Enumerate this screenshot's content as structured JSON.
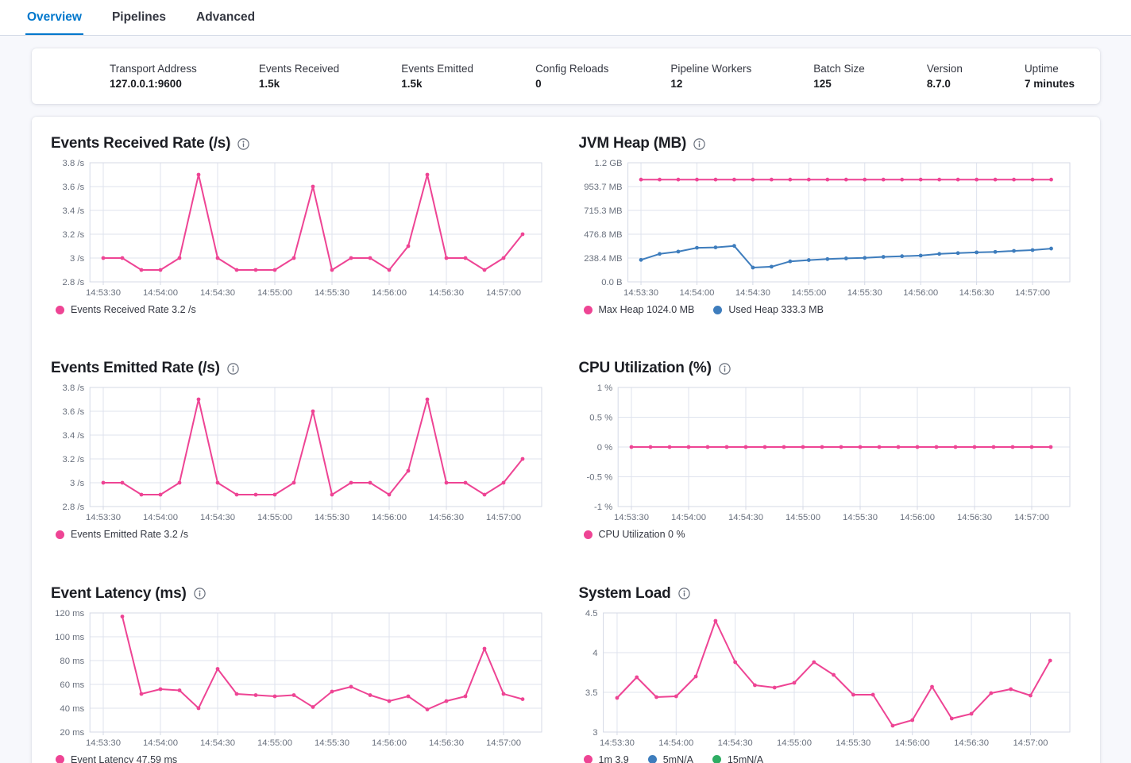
{
  "tabs": [
    {
      "label": "Overview",
      "active": true
    },
    {
      "label": "Pipelines",
      "active": false
    },
    {
      "label": "Advanced",
      "active": false
    }
  ],
  "colors": {
    "accent_blue": "#0077cc",
    "pink": "#ee4494",
    "blue": "#3e7dbd",
    "green": "#2ead63"
  },
  "stats": [
    {
      "label": "Transport Address",
      "value": "127.0.0.1:9600"
    },
    {
      "label": "Events Received",
      "value": "1.5k"
    },
    {
      "label": "Events Emitted",
      "value": "1.5k"
    },
    {
      "label": "Config Reloads",
      "value": "0"
    },
    {
      "label": "Pipeline Workers",
      "value": "12"
    },
    {
      "label": "Batch Size",
      "value": "125"
    },
    {
      "label": "Version",
      "value": "8.7.0"
    },
    {
      "label": "Uptime",
      "value": "7 minutes"
    }
  ],
  "charts": [
    {
      "id": "events-received-rate",
      "title": "Events Received Rate (/s)",
      "legend": [
        {
          "color": "#ee4494",
          "label": "Events Received Rate 3.2 /s"
        }
      ],
      "chart_data": {
        "type": "line",
        "x_start": "14:53:30",
        "x_interval_seconds": 10,
        "x_tick_labels": [
          "14:53:30",
          "14:54:00",
          "14:54:30",
          "14:55:00",
          "14:55:30",
          "14:56:00",
          "14:56:30",
          "14:57:00"
        ],
        "x_tick_units": [
          0,
          3,
          6,
          9,
          12,
          15,
          18,
          21
        ],
        "ylim": [
          2.8,
          3.8
        ],
        "y_ticks": [
          2.8,
          3,
          3.2,
          3.4,
          3.6,
          3.8
        ],
        "y_tick_labels": [
          "2.8 /s",
          "3 /s",
          "3.2 /s",
          "3.4 /s",
          "3.6 /s",
          "3.8 /s"
        ],
        "grid": true,
        "series": [
          {
            "name": "Events Received Rate",
            "color": "#ee4494",
            "x_offset": 0,
            "values": [
              3,
              3,
              2.9,
              2.9,
              3,
              3.7,
              3,
              2.9,
              2.9,
              2.9,
              3,
              3.6,
              2.9,
              3,
              3,
              2.9,
              3.1,
              3.7,
              3,
              3,
              2.9,
              3,
              3.2
            ]
          }
        ]
      }
    },
    {
      "id": "jvm-heap",
      "title": "JVM Heap (MB)",
      "legend": [
        {
          "color": "#ee4494",
          "label": "Max Heap 1024.0 MB"
        },
        {
          "color": "#3e7dbd",
          "label": "Used Heap 333.3 MB"
        }
      ],
      "chart_data": {
        "type": "line",
        "x_start": "14:53:30",
        "x_interval_seconds": 10,
        "x_tick_labels": [
          "14:53:30",
          "14:54:00",
          "14:54:30",
          "14:55:00",
          "14:55:30",
          "14:56:00",
          "14:56:30",
          "14:57:00"
        ],
        "x_tick_units": [
          0,
          3,
          6,
          9,
          12,
          15,
          18,
          21
        ],
        "ylim": [
          0,
          1192.1
        ],
        "y_ticks": [
          0,
          238.4,
          476.8,
          715.3,
          953.7,
          1192.1
        ],
        "y_tick_labels": [
          "0.0 B",
          "238.4 MB",
          "476.8 MB",
          "715.3 MB",
          "953.7 MB",
          "1.2 GB"
        ],
        "grid": true,
        "series": [
          {
            "name": "Max Heap",
            "color": "#ee4494",
            "x_offset": 0,
            "values": [
              1024,
              1024,
              1024,
              1024,
              1024,
              1024,
              1024,
              1024,
              1024,
              1024,
              1024,
              1024,
              1024,
              1024,
              1024,
              1024,
              1024,
              1024,
              1024,
              1024,
              1024,
              1024,
              1024
            ]
          },
          {
            "name": "Used Heap",
            "color": "#3e7dbd",
            "x_offset": 0,
            "values": [
              220,
              280,
              303,
              341,
              345,
              360,
              143,
              152,
              205,
              218,
              228,
              235,
              240,
              250,
              257,
              263,
              280,
              288,
              295,
              300,
              310,
              318,
              333.3
            ]
          }
        ]
      }
    },
    {
      "id": "events-emitted-rate",
      "title": "Events Emitted Rate (/s)",
      "legend": [
        {
          "color": "#ee4494",
          "label": "Events Emitted Rate 3.2 /s"
        }
      ],
      "chart_data": {
        "type": "line",
        "x_start": "14:53:30",
        "x_interval_seconds": 10,
        "x_tick_labels": [
          "14:53:30",
          "14:54:00",
          "14:54:30",
          "14:55:00",
          "14:55:30",
          "14:56:00",
          "14:56:30",
          "14:57:00"
        ],
        "x_tick_units": [
          0,
          3,
          6,
          9,
          12,
          15,
          18,
          21
        ],
        "ylim": [
          2.8,
          3.8
        ],
        "y_ticks": [
          2.8,
          3,
          3.2,
          3.4,
          3.6,
          3.8
        ],
        "y_tick_labels": [
          "2.8 /s",
          "3 /s",
          "3.2 /s",
          "3.4 /s",
          "3.6 /s",
          "3.8 /s"
        ],
        "grid": true,
        "series": [
          {
            "name": "Events Emitted Rate",
            "color": "#ee4494",
            "x_offset": 0,
            "values": [
              3,
              3,
              2.9,
              2.9,
              3,
              3.7,
              3,
              2.9,
              2.9,
              2.9,
              3,
              3.6,
              2.9,
              3,
              3,
              2.9,
              3.1,
              3.7,
              3,
              3,
              2.9,
              3,
              3.2
            ]
          }
        ]
      }
    },
    {
      "id": "cpu-utilization",
      "title": "CPU Utilization (%)",
      "legend": [
        {
          "color": "#ee4494",
          "label": "CPU Utilization 0 %"
        }
      ],
      "chart_data": {
        "type": "line",
        "x_start": "14:53:30",
        "x_interval_seconds": 10,
        "x_tick_labels": [
          "14:53:30",
          "14:54:00",
          "14:54:30",
          "14:55:00",
          "14:55:30",
          "14:56:00",
          "14:56:30",
          "14:57:00"
        ],
        "x_tick_units": [
          0,
          3,
          6,
          9,
          12,
          15,
          18,
          21
        ],
        "ylim": [
          -1,
          1
        ],
        "y_ticks": [
          -1,
          -0.5,
          0,
          0.5,
          1
        ],
        "y_tick_labels": [
          "-1 %",
          "-0.5 %",
          "0 %",
          "0.5 %",
          "1 %"
        ],
        "grid": true,
        "series": [
          {
            "name": "CPU Utilization",
            "color": "#ee4494",
            "x_offset": 0,
            "values": [
              0,
              0,
              0,
              0,
              0,
              0,
              0,
              0,
              0,
              0,
              0,
              0,
              0,
              0,
              0,
              0,
              0,
              0,
              0,
              0,
              0,
              0,
              0
            ]
          }
        ]
      }
    },
    {
      "id": "event-latency",
      "title": "Event Latency (ms)",
      "legend": [
        {
          "color": "#ee4494",
          "label": "Event Latency 47.59 ms"
        }
      ],
      "chart_data": {
        "type": "line",
        "x_start": "14:53:40",
        "x_interval_seconds": 10,
        "x_tick_labels": [
          "14:53:30",
          "14:54:00",
          "14:54:30",
          "14:55:00",
          "14:55:30",
          "14:56:00",
          "14:56:30",
          "14:57:00"
        ],
        "x_tick_units": [
          0,
          3,
          6,
          9,
          12,
          15,
          18,
          21
        ],
        "ylim": [
          20,
          120
        ],
        "y_ticks": [
          20,
          40,
          60,
          80,
          100,
          120
        ],
        "y_tick_labels": [
          "20 ms",
          "40 ms",
          "60 ms",
          "80 ms",
          "100 ms",
          "120 ms"
        ],
        "grid": true,
        "series": [
          {
            "name": "Event Latency",
            "color": "#ee4494",
            "x_offset": 1,
            "values": [
              117,
              52,
              56,
              55,
              40,
              73,
              52,
              51,
              50,
              51,
              41,
              54,
              58,
              51,
              46,
              50,
              39,
              46,
              50,
              90,
              52,
              47.59
            ]
          }
        ]
      }
    },
    {
      "id": "system-load",
      "title": "System Load",
      "legend": [
        {
          "color": "#ee4494",
          "label": "1m 3.9"
        },
        {
          "color": "#3e7dbd",
          "label": "5mN/A"
        },
        {
          "color": "#2ead63",
          "label": "15mN/A"
        }
      ],
      "chart_data": {
        "type": "line",
        "x_start": "14:53:30",
        "x_interval_seconds": 10,
        "x_tick_labels": [
          "14:53:30",
          "14:54:00",
          "14:54:30",
          "14:55:00",
          "14:55:30",
          "14:56:00",
          "14:56:30",
          "14:57:00"
        ],
        "x_tick_units": [
          0,
          3,
          6,
          9,
          12,
          15,
          18,
          21
        ],
        "ylim": [
          3,
          4.5
        ],
        "y_ticks": [
          3,
          3.5,
          4,
          4.5
        ],
        "y_tick_labels": [
          "3",
          "3.5",
          "4",
          "4.5"
        ],
        "grid": true,
        "series": [
          {
            "name": "1m",
            "color": "#ee4494",
            "x_offset": 0,
            "values": [
              3.43,
              3.69,
              3.44,
              3.45,
              3.7,
              4.4,
              3.88,
              3.59,
              3.56,
              3.62,
              3.88,
              3.72,
              3.47,
              3.47,
              3.08,
              3.15,
              3.57,
              3.17,
              3.23,
              3.49,
              3.54,
              3.46,
              3.9
            ]
          }
        ]
      }
    }
  ]
}
